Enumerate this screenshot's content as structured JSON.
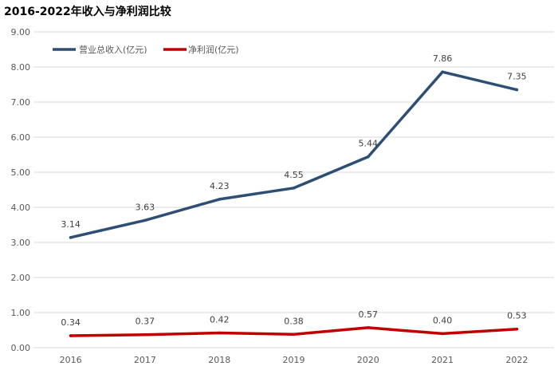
{
  "chart_data": {
    "type": "line",
    "title": "2016-2022年收入与净利润比较",
    "xlabel": "",
    "ylabel": "",
    "categories": [
      "2016",
      "2017",
      "2018",
      "2019",
      "2020",
      "2021",
      "2022"
    ],
    "ylim": [
      0,
      9
    ],
    "yticks": [
      "0.00",
      "1.00",
      "2.00",
      "3.00",
      "4.00",
      "5.00",
      "6.00",
      "7.00",
      "8.00",
      "9.00"
    ],
    "grid": true,
    "legend_position": "top-left",
    "series": [
      {
        "name": "营业总收入(亿元)",
        "color": "#2e4e74",
        "values": [
          3.14,
          3.63,
          4.23,
          4.55,
          5.44,
          7.86,
          7.35
        ],
        "labels": [
          "3.14",
          "3.63",
          "4.23",
          "4.55",
          "5.44",
          "7.86",
          "7.35"
        ]
      },
      {
        "name": "净利润(亿元)",
        "color": "#c00000",
        "values": [
          0.34,
          0.37,
          0.42,
          0.38,
          0.57,
          0.4,
          0.53
        ],
        "labels": [
          "0.34",
          "0.37",
          "0.42",
          "0.38",
          "0.57",
          "0.40",
          "0.53"
        ]
      }
    ]
  }
}
